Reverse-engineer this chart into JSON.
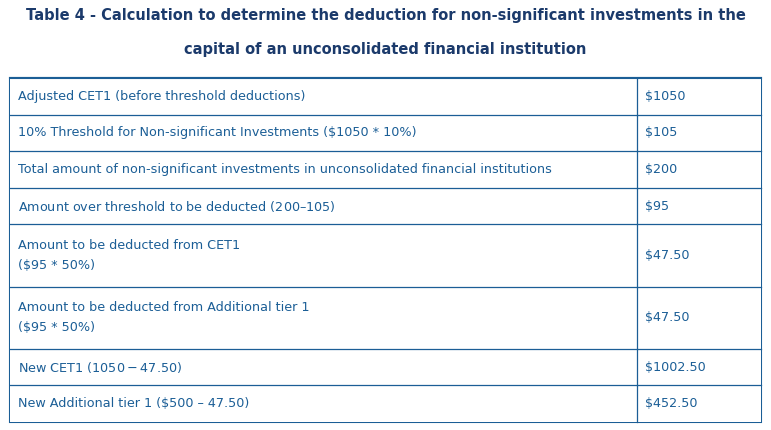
{
  "title_line1": "Table 4 - Calculation to determine the deduction for non-significant investments in the",
  "title_line2": "capital of an unconsolidated financial institution",
  "border_color": "#1B5E96",
  "row_bg": "#FFFFFF",
  "rows": [
    {
      "label": "Adjusted CET1 (before threshold deductions)",
      "label2": "",
      "value": "$1050"
    },
    {
      "label": "10% Threshold for Non-significant Investments ($1050 * 10%)",
      "label2": "",
      "value": "$105"
    },
    {
      "label": "Total amount of non-significant investments in unconsolidated financial institutions",
      "label2": "",
      "value": "$200"
    },
    {
      "label": "Amount over threshold to be deducted ($200 – $105)",
      "label2": "",
      "value": "$95"
    },
    {
      "label": "Amount to be deducted from CET1",
      "label2": "($95 * 50%)",
      "value": "$47.50"
    },
    {
      "label": "Amount to be deducted from Additional tier 1",
      "label2": "($95 * 50%)",
      "value": "$47.50"
    },
    {
      "label": "New CET1 ($1050 - $47.50)",
      "label2": "",
      "value": "$1002.50"
    },
    {
      "label": "New Additional tier 1 ($500 – 47.50)",
      "label2": "",
      "value": "$452.50"
    }
  ],
  "text_color": "#1B5E96",
  "title_color": "#1B3A6B",
  "font_size": 9.2,
  "title_font_size": 10.5,
  "fig_bg": "#FFFFFF",
  "col_split": 0.835
}
